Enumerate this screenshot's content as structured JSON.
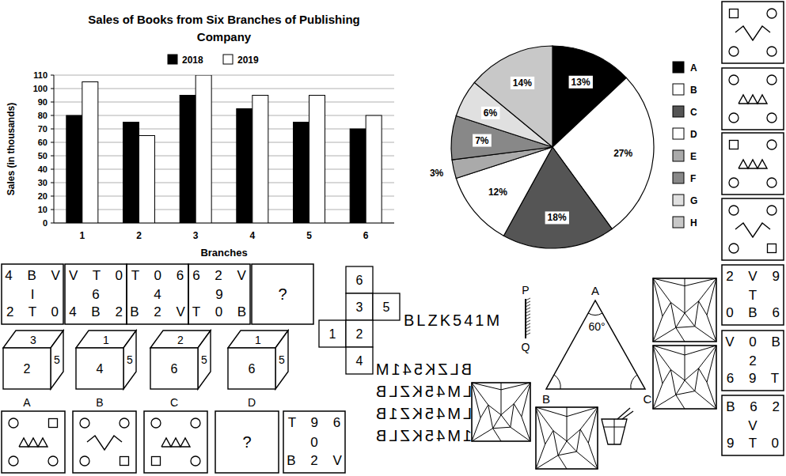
{
  "chart_data": [
    {
      "type": "bar",
      "title": "Sales of Books from Six Branches of Publishing Company",
      "x_label": "Branches",
      "y_label": "Sales (in thousands)",
      "categories": [
        "1",
        "2",
        "3",
        "4",
        "5",
        "6"
      ],
      "series": [
        {
          "name": "2018",
          "color": "#000000",
          "values": [
            80,
            75,
            95,
            85,
            75,
            70
          ]
        },
        {
          "name": "2019",
          "color": "#ffffff",
          "values": [
            105,
            65,
            110,
            95,
            95,
            80
          ]
        }
      ],
      "ylim": [
        0,
        110
      ],
      "yticks": [
        0,
        10,
        20,
        30,
        40,
        50,
        60,
        70,
        80,
        90,
        100,
        110
      ],
      "grid": true,
      "legend": "top"
    },
    {
      "type": "pie",
      "categories": [
        "A",
        "B",
        "C",
        "D",
        "E",
        "F",
        "G",
        "H"
      ],
      "values": [
        13,
        27,
        18,
        12,
        3,
        7,
        6,
        14
      ],
      "value_labels": [
        "13%",
        "27%",
        "18%",
        "12%",
        "3%",
        "7%",
        "6%",
        "14%"
      ],
      "colors": [
        "#000000",
        "#ffffff",
        "#555555",
        "#ffffff",
        "#aaaaaa",
        "#888888",
        "#e0e0e0",
        "#c8c8c8"
      ],
      "data_labels": true,
      "legend": "right"
    }
  ],
  "letter_series": {
    "figures": [
      [
        "4 B V",
        "I",
        "2 T 0"
      ],
      [
        "V T 0",
        "6",
        "4 B 2"
      ],
      [
        "T 0 6",
        "4",
        "B 2 V"
      ],
      [
        "6 2 V",
        "9",
        "T 0 B"
      ],
      [
        "?"
      ]
    ]
  },
  "dice": [
    {
      "label": "A",
      "top": "3",
      "front": "2",
      "right": "5"
    },
    {
      "label": "B",
      "top": "1",
      "front": "4",
      "right": "5"
    },
    {
      "label": "C",
      "top": "2",
      "front": "6",
      "right": "5"
    },
    {
      "label": "D",
      "top": "1",
      "front": "6",
      "right": "5"
    }
  ],
  "cube_net": {
    "faces": [
      "6",
      "3",
      "5",
      "1",
      "2",
      "4"
    ]
  },
  "symbol_series": {
    "question_mark": "?",
    "answer_figure": [
      "T 9 6",
      "0",
      "B 2 V"
    ]
  },
  "mirror": {
    "word": "BLZK541M",
    "top_label": "P",
    "bottom_label": "Q",
    "options": [
      "BLZK541M",
      "LM45KZLB",
      "LM45KZ1B",
      "1M45KZLB"
    ]
  },
  "triangle": {
    "vertices": [
      "A",
      "B",
      "C"
    ],
    "angle": "60°"
  },
  "answer_grids": [
    [
      "2 V 9",
      "T",
      "0 B 6"
    ],
    [
      "V 0 B",
      "2",
      "6 9 T"
    ],
    [
      "B 6 2",
      "V",
      "9 T 0"
    ]
  ]
}
